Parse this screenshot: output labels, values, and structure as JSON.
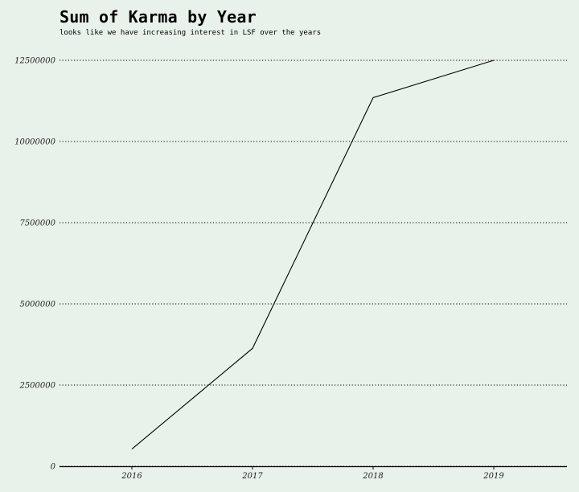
{
  "chart_data": {
    "type": "line",
    "title": "Sum of Karma by Year",
    "subtitle": "looks like we have increasing interest in LSF over the years",
    "xlabel": "",
    "ylabel": "",
    "categories": [
      "2016",
      "2017",
      "2018",
      "2019"
    ],
    "series": [
      {
        "values": [
          530000,
          3630000,
          11350000,
          12500000
        ]
      }
    ],
    "ylim": [
      0,
      12500000
    ],
    "yticks": [
      0,
      2500000,
      5000000,
      7500000,
      10000000,
      12500000
    ],
    "ytick_labels": [
      "0",
      "2500000",
      "5000000",
      "7500000",
      "10000000",
      "12500000"
    ],
    "grid": "horizontal dotted",
    "legend": "none",
    "colors": {
      "background": "#e9f2ea",
      "line": "#000000",
      "grid": "#000000"
    }
  }
}
